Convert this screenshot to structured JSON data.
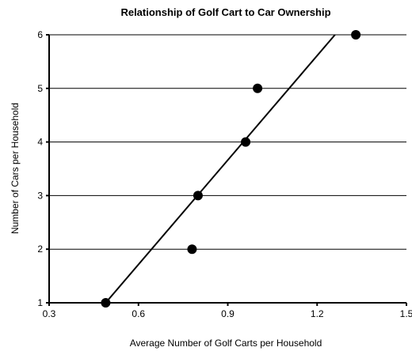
{
  "chart_data": {
    "type": "scatter",
    "title": "Relationship of Golf Cart to Car Ownership",
    "xlabel": "Average Number of Golf Carts per Household",
    "ylabel": "Number of Cars per Household",
    "xlim": [
      0.3,
      1.5
    ],
    "ylim": [
      1,
      6
    ],
    "x_ticks": [
      "0.3",
      "0.6",
      "0.9",
      "1.2",
      "1.5"
    ],
    "y_ticks": [
      "1",
      "2",
      "3",
      "4",
      "5",
      "6"
    ],
    "grid": "horizontal",
    "points": [
      {
        "x": 0.49,
        "y": 1
      },
      {
        "x": 0.78,
        "y": 2
      },
      {
        "x": 0.8,
        "y": 3
      },
      {
        "x": 0.96,
        "y": 4
      },
      {
        "x": 1.0,
        "y": 5
      },
      {
        "x": 1.33,
        "y": 6
      }
    ],
    "trendline": {
      "x1": 0.49,
      "y1": 1,
      "x2": 1.26,
      "y2": 6
    },
    "colors": {
      "marker": "#000000",
      "line": "#000000",
      "grid": "#000000"
    }
  }
}
